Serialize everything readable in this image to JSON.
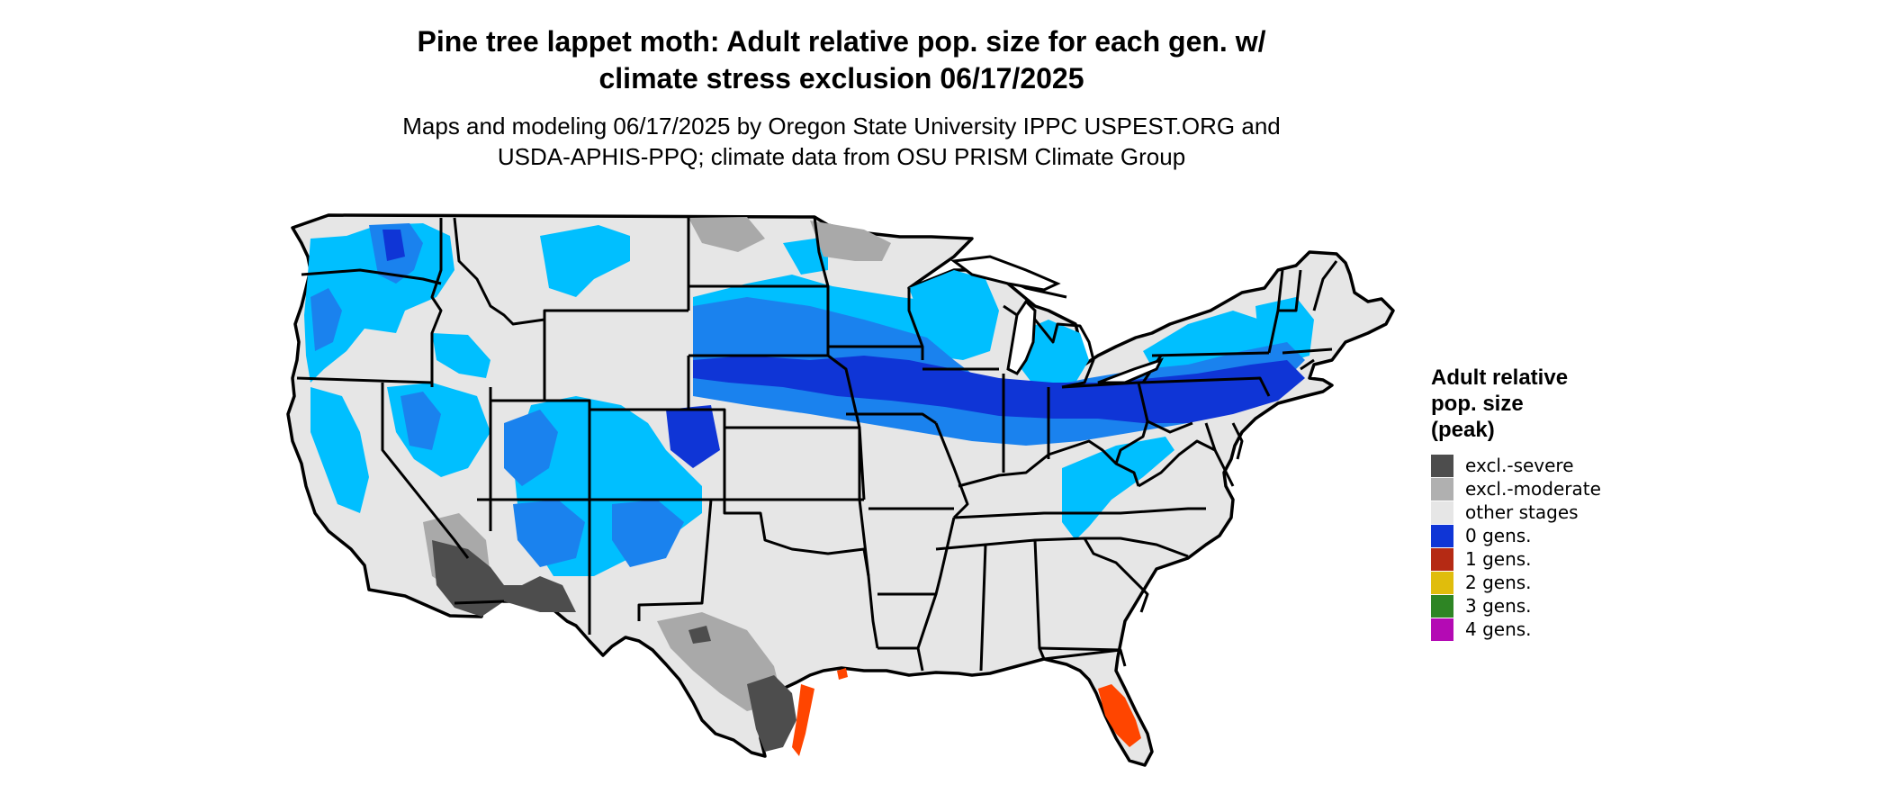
{
  "title_line1": "Pine tree lappet moth: Adult relative pop. size for each gen. w/",
  "title_line2": "climate stress exclusion 06/17/2025",
  "subtitle_line1": "Maps and modeling 06/17/2025 by Oregon State University IPPC USPEST.ORG and",
  "subtitle_line2": "USDA-APHIS-PPQ; climate data from OSU PRISM Climate Group",
  "legend": {
    "title_line1": "Adult relative",
    "title_line2": "pop. size",
    "title_line3": "(peak)",
    "items": [
      {
        "label": "excl.-severe",
        "color": "#4d4d4d"
      },
      {
        "label": "excl.-moderate",
        "color": "#b0b0b0"
      },
      {
        "label": "other stages",
        "color": "#e6e6e6"
      },
      {
        "label": "0 gens.",
        "color": "#0f35d6"
      },
      {
        "label": "1 gens.",
        "color": "#b52a14"
      },
      {
        "label": "2 gens.",
        "color": "#e0bd0c"
      },
      {
        "label": "3 gens.",
        "color": "#2e8524"
      },
      {
        "label": "4 gens.",
        "color": "#b40ab4"
      }
    ]
  },
  "map_colors": {
    "land": "#e6e6e6",
    "light_blue": "#00bfff",
    "mid_blue": "#1a82ee",
    "dark_blue": "#0f35d6",
    "severe": "#4d4d4d",
    "moderate": "#a9a9a9",
    "orange": "#ff4500",
    "border": "#000000"
  }
}
